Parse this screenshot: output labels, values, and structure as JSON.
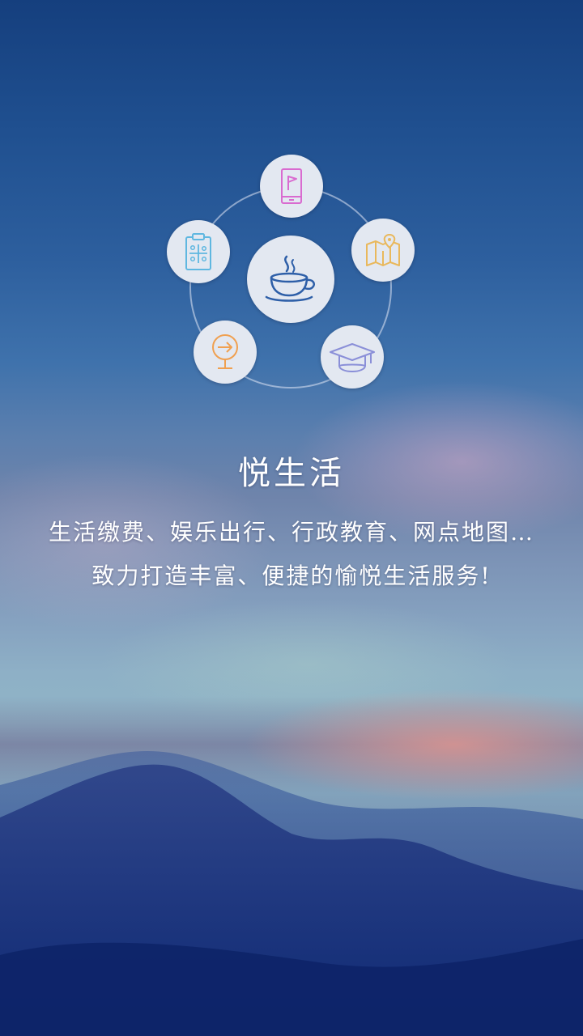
{
  "intro": {
    "title": "悦生活",
    "description_line1": "生活缴费、娱乐出行、行政教育、网点地图…",
    "description_line2": "致力打造丰富、便捷的愉悦生活服务!"
  },
  "menu": {
    "center": {
      "icon": "coffee-cup-icon",
      "color": "#2e5fa8"
    },
    "items": [
      {
        "icon": "mobile-flag-icon",
        "color": "#d96bd0"
      },
      {
        "icon": "map-pin-icon",
        "color": "#e9b85c"
      },
      {
        "icon": "graduation-cap-icon",
        "color": "#8a8fd8"
      },
      {
        "icon": "arrow-sign-icon",
        "color": "#f0a050"
      },
      {
        "icon": "clipboard-icon",
        "color": "#5fb7e0"
      }
    ]
  },
  "colors": {
    "sky_top": "#153f7e",
    "node_background": "#e3e8f1",
    "text": "#ffffff"
  }
}
